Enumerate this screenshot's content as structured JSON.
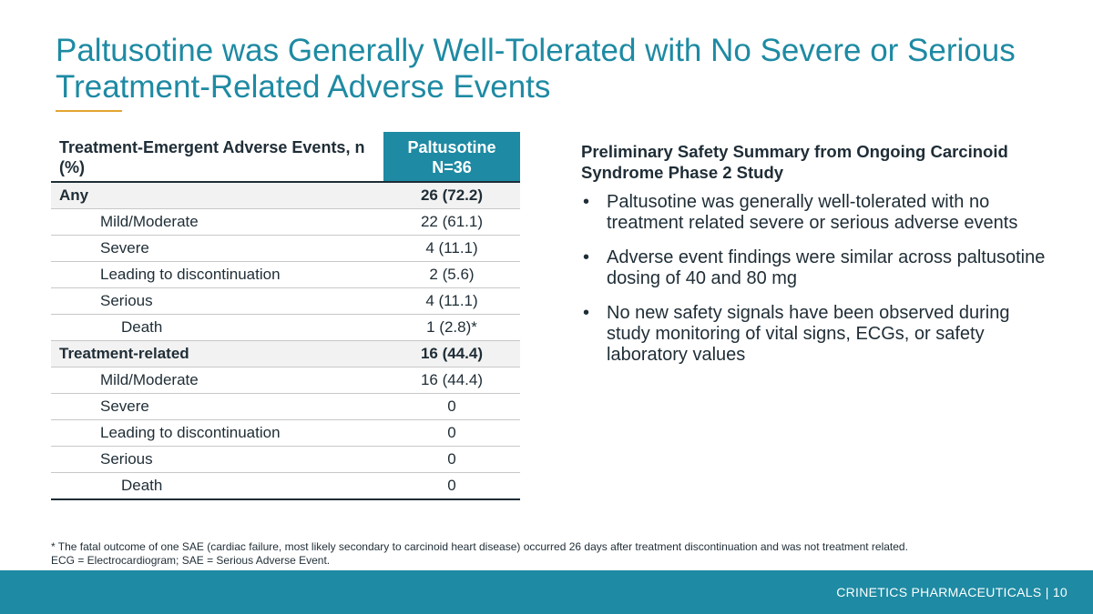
{
  "title": "Paltusotine was Generally Well-Tolerated with No Severe or Serious Treatment-Related Adverse Events",
  "table": {
    "header_label": "Treatment-Emergent Adverse Events, n (%)",
    "header_col_line1": "Paltusotine",
    "header_col_line2": "N=36",
    "rows": [
      {
        "label": "Any",
        "value": "26 (72.2)",
        "bold": true,
        "level": 0
      },
      {
        "label": "Mild/Moderate",
        "value": "22 (61.1)",
        "bold": false,
        "level": 1
      },
      {
        "label": "Severe",
        "value": "4 (11.1)",
        "bold": false,
        "level": 1
      },
      {
        "label": "Leading to discontinuation",
        "value": "2 (5.6)",
        "bold": false,
        "level": 1
      },
      {
        "label": "Serious",
        "value": "4 (11.1)",
        "bold": false,
        "level": 1
      },
      {
        "label": "Death",
        "value": "1 (2.8)*",
        "bold": false,
        "level": 2
      },
      {
        "label": "Treatment-related",
        "value": "16 (44.4)",
        "bold": true,
        "level": 0
      },
      {
        "label": "Mild/Moderate",
        "value": "16 (44.4)",
        "bold": false,
        "level": 1
      },
      {
        "label": "Severe",
        "value": "0",
        "bold": false,
        "level": 1
      },
      {
        "label": "Leading to discontinuation",
        "value": "0",
        "bold": false,
        "level": 1
      },
      {
        "label": "Serious",
        "value": "0",
        "bold": false,
        "level": 1
      },
      {
        "label": "Death",
        "value": "0",
        "bold": false,
        "level": 2
      }
    ]
  },
  "summary": {
    "heading": "Preliminary Safety Summary from Ongoing Carcinoid Syndrome Phase 2 Study",
    "bullets": [
      "Paltusotine was generally well-tolerated with no treatment related severe or serious adverse events",
      "Adverse event findings were similar across paltusotine dosing of 40 and 80 mg",
      "No new safety signals have been observed during study monitoring of vital signs, ECGs, or safety laboratory values"
    ]
  },
  "footnote": {
    "line1": "* The fatal outcome of one SAE (cardiac failure, most likely secondary to carcinoid heart disease) occurred 26 days after treatment discontinuation and was not treatment related.",
    "line2": "ECG = Electrocardiogram; SAE = Serious Adverse Event."
  },
  "footer": {
    "text": "CRINETICS PHARMACEUTICALS  |  10"
  },
  "colors": {
    "accent": "#1e8aa3",
    "rule": "#e3a531"
  }
}
